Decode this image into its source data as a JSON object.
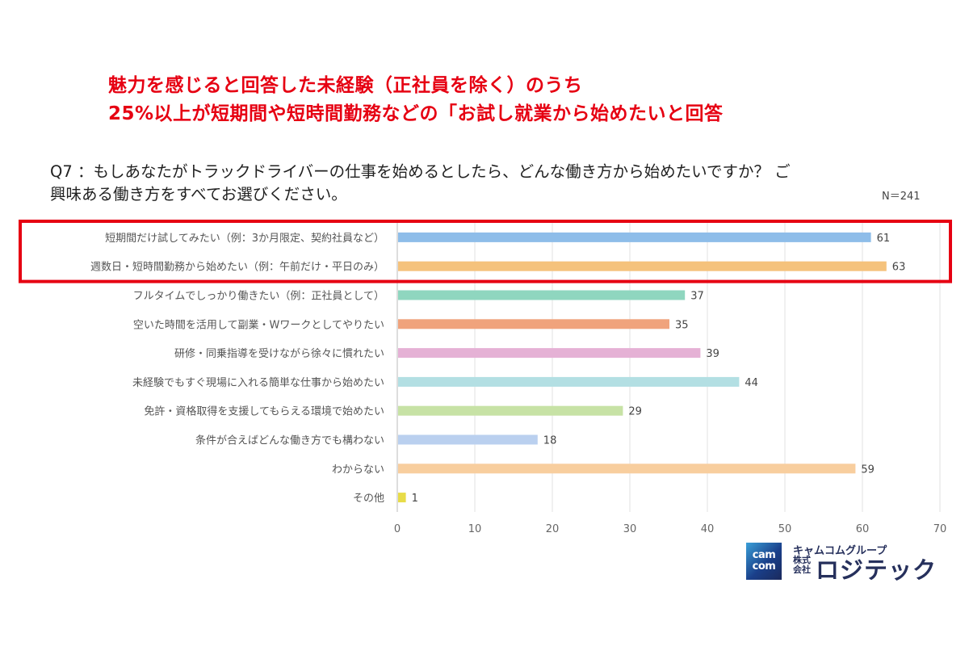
{
  "headline": {
    "line1": "魅力を感じると回答した未経験（正社員を除く）のうち",
    "line2": "25%以上が短期間や短時間勤務などの「お試し就業から始めたいと回答"
  },
  "question": {
    "line1": "Q7 ：もしあなたがトラックドライバーの仕事を始めるとしたら、どんな働き方から始めたいですか？ ご",
    "line2": "興味ある働き方をすべてお選びください。",
    "n": "N＝241"
  },
  "highlight_color": "#e60012",
  "chart_data": {
    "type": "bar",
    "orientation": "horizontal",
    "categories": [
      "短期間だけ試してみたい（例：3か月限定、契約社員など）",
      "週数日・短時間勤務から始めたい（例：午前だけ・平日のみ）",
      "フルタイムでしっかり働きたい（例：正社員として）",
      "空いた時間を活用して副業・Wワークとしてやりたい",
      "研修・同乗指導を受けながら徐々に慣れたい",
      "未経験でもすぐ現場に入れる簡単な仕事から始めたい",
      "免許・資格取得を支援してもらえる環境で始めたい",
      "条件が合えばどんな働き方でも構わない",
      "わからない",
      "その他"
    ],
    "values": [
      61,
      63,
      37,
      35,
      39,
      44,
      29,
      18,
      59,
      1
    ],
    "colors": [
      "#8ebde9",
      "#f5c27c",
      "#8fd6bf",
      "#f0a37c",
      "#e5b1d5",
      "#b3dfe3",
      "#c7e2a5",
      "#bad0ef",
      "#f8ce9e",
      "#e8dc48"
    ],
    "xlim": [
      0,
      70
    ],
    "xticks": [
      "0",
      "10",
      "20",
      "30",
      "40",
      "50",
      "60",
      "70"
    ],
    "grid": true,
    "highlighted_categories": [
      0,
      1
    ]
  },
  "logo": {
    "mark": "cam com",
    "group": "キャムコムグループ",
    "kabushiki": "株式",
    "kaisha": "会社",
    "brand": "ロジテック"
  }
}
